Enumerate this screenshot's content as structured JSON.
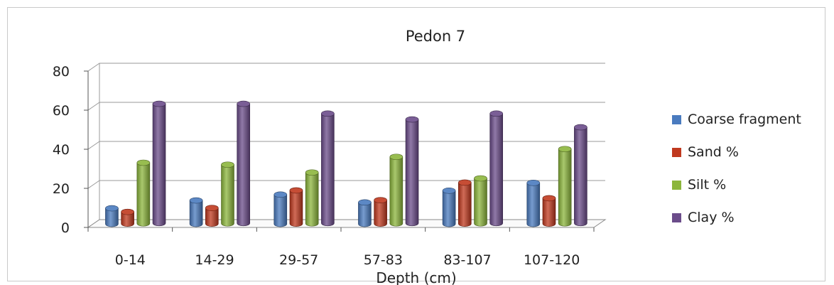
{
  "chart_data": {
    "type": "bar",
    "title": "Pedon 7",
    "xlabel": "Depth (cm)",
    "ylabel": "",
    "ylim": [
      0,
      80
    ],
    "yticks": [
      "0",
      "20",
      "40",
      "60",
      "80"
    ],
    "categories": [
      "0-14",
      "14-29",
      "29-57",
      "57-83",
      "83-107",
      "107-120"
    ],
    "series": [
      {
        "name": "Coarse fragment",
        "color": "#4a7bbf",
        "values": [
          8,
          12,
          15,
          11,
          17,
          21
        ]
      },
      {
        "name": "Sand %",
        "color": "#c0391f",
        "values": [
          6,
          8,
          17,
          12,
          21,
          13
        ]
      },
      {
        "name": "Silt %",
        "color": "#8cb63c",
        "values": [
          31,
          30,
          26,
          34,
          23,
          38
        ]
      },
      {
        "name": "Clay %",
        "color": "#6b4c8a",
        "values": [
          61,
          61,
          56,
          53,
          56,
          49
        ]
      }
    ],
    "grid": true,
    "legend": "right",
    "style": "3d-cylinder"
  }
}
